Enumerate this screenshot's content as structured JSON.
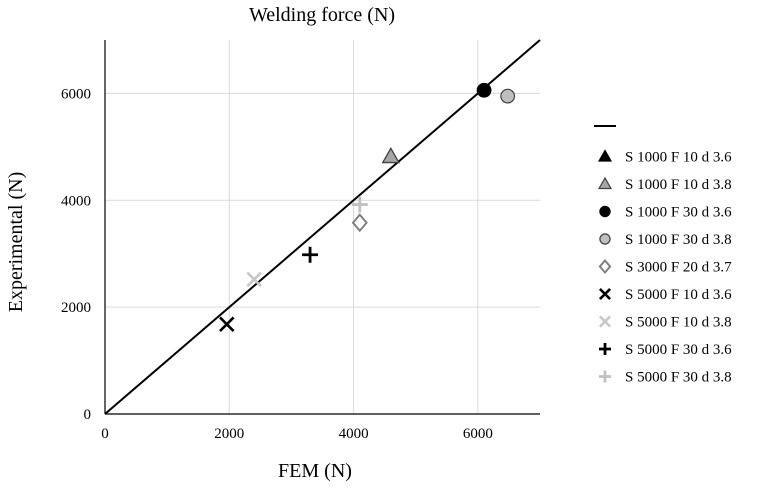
{
  "chart_data": {
    "type": "scatter",
    "title": "Welding force (N)",
    "xlabel": "FEM (N)",
    "ylabel": "Experimental (N)",
    "xlim": [
      0,
      7000
    ],
    "ylim": [
      0,
      7000
    ],
    "xticks": [
      "0",
      "2000",
      "4000",
      "6000"
    ],
    "yticks": [
      "0",
      "2000",
      "4000",
      "6000"
    ],
    "grid": true,
    "legend_position": "right",
    "reference_line": {
      "name": "",
      "x": [
        0,
        7000
      ],
      "y": [
        0,
        7000
      ]
    },
    "series": [
      {
        "name": "S 1000 F 10 d 3.6",
        "marker": "triangle",
        "color": "#000000",
        "stroke": "#000000",
        "points": [
          [
            4600,
            4820
          ]
        ]
      },
      {
        "name": "S 1000 F 10 d 3.8",
        "marker": "triangle",
        "color": "#a6a6a6",
        "stroke": "#404040",
        "points": [
          [
            4600,
            4820
          ]
        ]
      },
      {
        "name": "S 1000 F 30 d 3.6",
        "marker": "circle",
        "color": "#000000",
        "stroke": "#000000",
        "points": [
          [
            6100,
            6060
          ]
        ]
      },
      {
        "name": "S 1000 F 30 d 3.8",
        "marker": "circle",
        "color": "#bfbfbf",
        "stroke": "#404040",
        "points": [
          [
            6480,
            5950
          ]
        ]
      },
      {
        "name": "S 3000 F 20 d 3.7",
        "marker": "diamond",
        "color": "#ffffff",
        "stroke": "#808080",
        "points": [
          [
            4100,
            3580
          ]
        ]
      },
      {
        "name": "S 5000 F 10 d 3.6",
        "marker": "x",
        "color": "#000000",
        "stroke": "#000000",
        "points": [
          [
            1960,
            1680
          ]
        ]
      },
      {
        "name": "S 5000 F 10 d 3.8",
        "marker": "x",
        "color": "#c8c8c8",
        "stroke": "#c8c8c8",
        "points": [
          [
            2400,
            2520
          ]
        ]
      },
      {
        "name": "S 5000 F 30 d 3.6",
        "marker": "plus",
        "color": "#000000",
        "stroke": "#000000",
        "points": [
          [
            3300,
            2980
          ]
        ]
      },
      {
        "name": "S 5000 F 30 d 3.8",
        "marker": "plus",
        "color": "#c0c0c0",
        "stroke": "#c0c0c0",
        "points": [
          [
            4100,
            3920
          ]
        ]
      }
    ]
  }
}
